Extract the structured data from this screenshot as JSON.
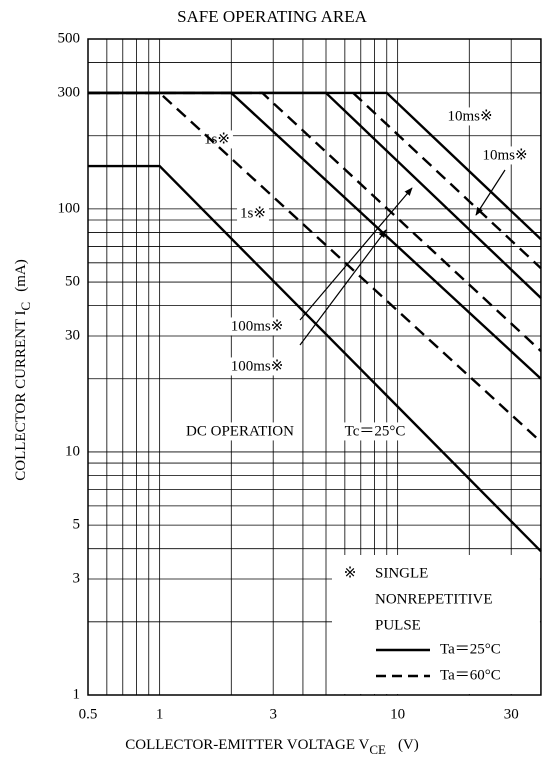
{
  "chart_data": {
    "type": "line",
    "title": "SAFE OPERATING AREA",
    "xlabel": {
      "text": "COLLECTOR-EMITTER VOLTAGE  V",
      "sub": "CE",
      "unit": "(V)"
    },
    "ylabel": {
      "text": "COLLECTOR CURRENT  I",
      "sub": "C",
      "unit": "(mA)"
    },
    "xscale": "log",
    "yscale": "log",
    "xlim": [
      0.5,
      40
    ],
    "ylim": [
      1,
      500
    ],
    "xticks": [
      0.5,
      1,
      3,
      10,
      30
    ],
    "yticks": [
      1,
      3,
      5,
      10,
      30,
      50,
      100,
      300,
      500
    ],
    "xgrid": [
      0.5,
      0.6,
      0.7,
      0.8,
      0.9,
      1,
      2,
      3,
      4,
      5,
      6,
      7,
      8,
      9,
      10,
      20,
      30,
      40
    ],
    "ygrid": [
      1,
      2,
      3,
      4,
      5,
      6,
      7,
      8,
      9,
      10,
      20,
      30,
      40,
      50,
      60,
      70,
      80,
      90,
      100,
      200,
      300,
      400,
      500
    ],
    "series": [
      {
        "style": "solid",
        "x": [
          0.5,
          1,
          40
        ],
        "values": [
          150,
          150,
          3.9
        ]
      },
      {
        "style": "dashed",
        "x": [
          0.5,
          1,
          40
        ],
        "values": [
          300,
          300,
          11
        ]
      },
      {
        "style": "solid",
        "x": [
          0.5,
          2,
          40
        ],
        "values": [
          300,
          300,
          20
        ]
      },
      {
        "style": "dashed",
        "x": [
          0.5,
          2.7,
          40
        ],
        "values": [
          300,
          300,
          26
        ]
      },
      {
        "style": "solid",
        "x": [
          0.5,
          5,
          40
        ],
        "values": [
          300,
          300,
          43
        ]
      },
      {
        "style": "dashed",
        "x": [
          6.5,
          40
        ],
        "values": [
          300,
          57
        ]
      },
      {
        "style": "solid",
        "x": [
          0.5,
          9,
          40
        ],
        "values": [
          300,
          300,
          75
        ]
      }
    ],
    "annotations": [
      "10ms※",
      "10ms※",
      "1s※",
      "1s※",
      "100ms※",
      "100ms※",
      "DC OPERATION",
      "Tc＝25°C"
    ],
    "legend": {
      "note": [
        "※",
        "SINGLE",
        "NONREPETITIVE",
        "PULSE"
      ],
      "entries": [
        {
          "style": "solid",
          "label": "Ta＝25°C"
        },
        {
          "style": "dashed",
          "label": "Ta＝60°C"
        }
      ]
    }
  }
}
